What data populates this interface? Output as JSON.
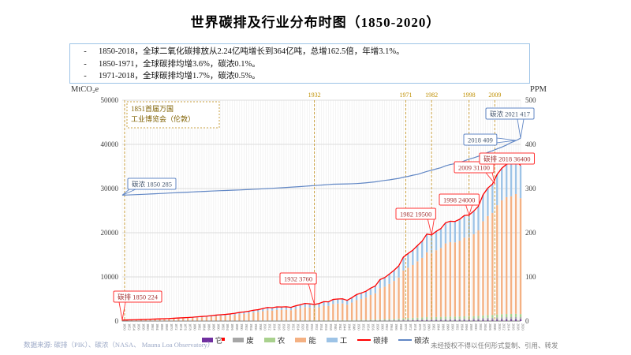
{
  "page": {
    "title": "世界碳排及行业分布时图（1850-2020）",
    "bullet_char": "-",
    "summary_bullets": [
      "1850-2018，全球二氧化碳排放从2.24亿吨增长到364亿吨，总增162.5倍，年增3.1%。",
      "1850-1971，全球碳排均增3.6%，碳浓0.1%。",
      "1971-2018，全球碳排均增1.7%，碳浓0.5%。"
    ],
    "footer_left": "数据来源: 碳排（PIK）、碳浓（NASA、 Mauna Loa Observatory）",
    "footer_right": "未经授权不得以任何形式复制、引用、转发"
  },
  "chart_data": {
    "type": "combo: stacked-bar (sector share of emissions) + line (total emissions, left axis) + line (CO2 concentration, right axis)",
    "title": "世界碳排及行业分布时图（1850-2020）",
    "left_axis": {
      "label": "MtCO₂e",
      "min": 0,
      "max": 50000,
      "ticks": [
        0,
        10000,
        20000,
        30000,
        40000,
        50000
      ]
    },
    "right_axis": {
      "label": "PPM",
      "min": 0,
      "max": 500,
      "ticks": [
        0,
        100,
        200,
        300,
        400,
        500
      ]
    },
    "x_axis": {
      "start": 1850,
      "end": 2020,
      "step": 2
    },
    "grid": "horizontal major + fine vertical yearly stripes",
    "series": [
      {
        "name": "碳排",
        "axis": "left",
        "color": "#FF0000",
        "style": "line",
        "values": [
          224,
          255,
          285,
          315,
          345,
          380,
          420,
          460,
          500,
          535,
          575,
          640,
          700,
          750,
          805,
          870,
          960,
          1040,
          1110,
          1230,
          1350,
          1430,
          1510,
          1620,
          1760,
          1950,
          2070,
          2230,
          2450,
          2580,
          2830,
          3080,
          3010,
          3210,
          3190,
          3240,
          3110,
          3450,
          3700,
          4000,
          3900,
          3760,
          3980,
          4400,
          4350,
          4900,
          5000,
          5050,
          4700,
          5300,
          6000,
          6350,
          6750,
          7450,
          7950,
          9400,
          9850,
          10650,
          11500,
          12500,
          14500,
          15300,
          16050,
          17100,
          18100,
          19700,
          19500,
          20300,
          20950,
          22250,
          22600,
          22550,
          23050,
          23900,
          24000,
          24900,
          26000,
          28600,
          30100,
          31000,
          33200,
          34600,
          35500,
          35750,
          36400,
          35200
        ]
      },
      {
        "name": "碳浓",
        "axis": "right",
        "color": "#6187C5",
        "style": "line",
        "values": [
          285.0,
          285.4,
          285.8,
          286.3,
          286.7,
          287.2,
          287.7,
          288.2,
          288.7,
          289.2,
          289.8,
          290.3,
          290.8,
          291.3,
          291.8,
          292.3,
          292.8,
          293.3,
          293.8,
          294.3,
          294.8,
          295.2,
          295.6,
          296.0,
          296.4,
          296.8,
          297.3,
          297.8,
          298.3,
          298.8,
          299.4,
          300.0,
          300.6,
          301.2,
          301.8,
          302.5,
          303.1,
          303.8,
          304.5,
          305.2,
          306.0,
          306.8,
          307.5,
          308.2,
          309.0,
          309.8,
          310.1,
          310.3,
          310.5,
          310.8,
          311.3,
          312.0,
          313.0,
          314.1,
          315.2,
          316.9,
          318.4,
          319.6,
          321.4,
          323.0,
          325.7,
          327.5,
          330.1,
          332.0,
          335.4,
          338.8,
          341.4,
          344.4,
          347.2,
          351.5,
          354.4,
          356.4,
          358.8,
          362.6,
          366.7,
          369.5,
          373.2,
          377.5,
          381.9,
          385.6,
          389.9,
          393.8,
          398.6,
          404.2,
          408.5,
          414.0
        ]
      }
    ],
    "sectors": [
      {
        "name": "它",
        "color": "#7030A0",
        "fraction": 0.01
      },
      {
        "name": "废",
        "color": "#A6A6A6",
        "fraction": 0.015
      },
      {
        "name": "农",
        "color": "#A9D18E",
        "fraction": 0.02
      },
      {
        "name": "能",
        "color": "#F4B183",
        "fraction": 0.745
      },
      {
        "name": "工",
        "color": "#9DC3E6",
        "fraction": 0.21
      }
    ],
    "event_note": {
      "year": 1851,
      "lines": [
        "1851首届万国",
        "工业博览会（伦敦）"
      ]
    },
    "event_years": [
      {
        "year": 1851,
        "top_label": ""
      },
      {
        "year": 1932,
        "top_label": "1932"
      },
      {
        "year": 1971,
        "top_label": "1971"
      },
      {
        "year": 1982,
        "top_label": "1982"
      },
      {
        "year": 1998,
        "top_label": "1998"
      },
      {
        "year": 2009,
        "top_label": "2009"
      }
    ],
    "annotations": [
      {
        "text": "碳浓 1850 285",
        "kind": "blue",
        "anchor_year": 1850,
        "anchor_value": 285,
        "axis": "right",
        "bx": 162,
        "by": 226
      },
      {
        "text": "碳排 1850 224",
        "kind": "red",
        "anchor_year": 1850,
        "anchor_value": 224,
        "axis": "left",
        "bx": 144,
        "by": 369
      },
      {
        "text": "1932 3760",
        "kind": "red",
        "anchor_year": 1932,
        "anchor_value": 3760,
        "axis": "left",
        "bx": 355,
        "by": 346
      },
      {
        "text": "1982 19500",
        "kind": "red",
        "anchor_year": 1982,
        "anchor_value": 19500,
        "axis": "left",
        "bx": 502,
        "by": 264
      },
      {
        "text": "1998 24000",
        "kind": "red",
        "anchor_year": 1998,
        "anchor_value": 24000,
        "axis": "left",
        "bx": 557,
        "by": 246
      },
      {
        "text": "2009 31100",
        "kind": "red",
        "anchor_year": 2009,
        "anchor_value": 31100,
        "axis": "left",
        "bx": 576,
        "by": 205
      },
      {
        "text": "碳排 2018 36400",
        "kind": "red",
        "anchor_year": 2018,
        "anchor_value": 36400,
        "axis": "left",
        "bx": 608,
        "by": 194
      },
      {
        "text": "2018 409",
        "kind": "blue",
        "anchor_year": 2018,
        "anchor_value": 409,
        "axis": "right",
        "bx": 588,
        "by": 170
      },
      {
        "text": "碳浓 2021 417",
        "kind": "blue",
        "anchor_year": 2021,
        "anchor_value": 414,
        "axis": "right",
        "bx": 616,
        "by": 137
      }
    ],
    "colors": {
      "event_line": "#C9A040",
      "event_label": "#BF8F00",
      "note_text": "#7F6000",
      "red_box_border": "#FF3333",
      "blue_box_border": "#6187C5",
      "grid_major": "#DCDCDC",
      "grid_stripe": "#ECECEC",
      "axis_line": "#808080",
      "tick_text": "#404040"
    }
  },
  "legend": {
    "items": [
      {
        "label": "它",
        "color": "#7030A0",
        "shape": "swatch"
      },
      {
        "label": "废",
        "color": "#A6A6A6",
        "shape": "swatch"
      },
      {
        "label": "农",
        "color": "#A9D18E",
        "shape": "swatch"
      },
      {
        "label": "能",
        "color": "#F4B183",
        "shape": "swatch"
      },
      {
        "label": "工",
        "color": "#9DC3E6",
        "shape": "swatch"
      },
      {
        "label": "碳排",
        "color": "#FF0000",
        "shape": "line"
      },
      {
        "label": "碳浓",
        "color": "#6187C5",
        "shape": "line"
      }
    ]
  }
}
